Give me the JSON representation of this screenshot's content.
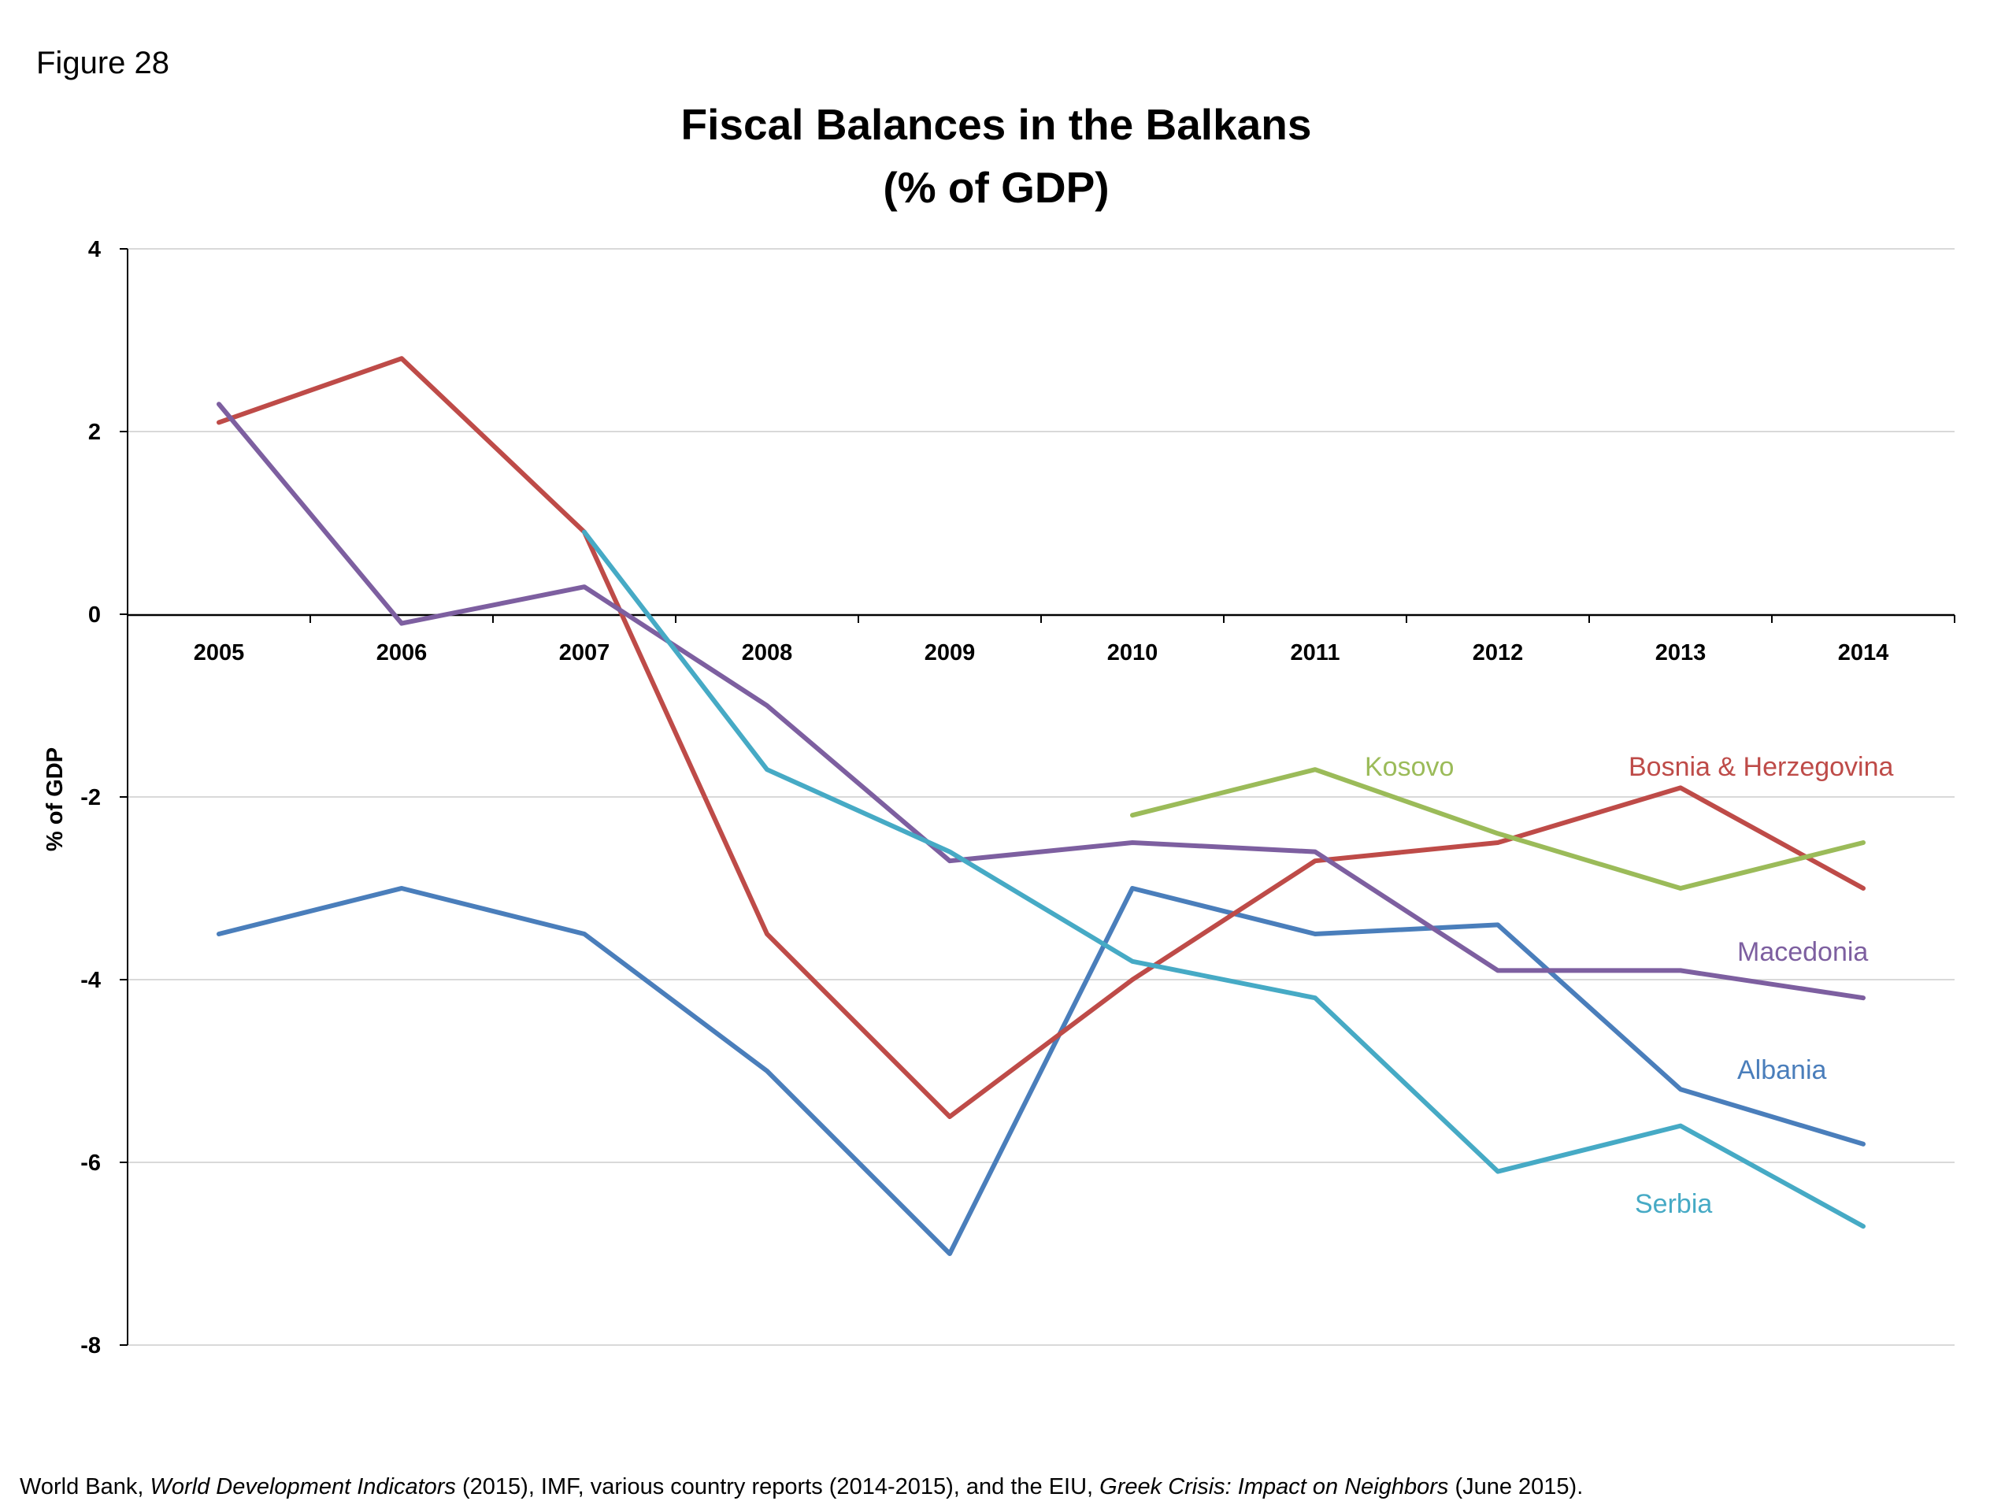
{
  "figure_label": "Figure 28",
  "title_line1": "Fiscal Balances in the Balkans",
  "title_line2": "(% of GDP)",
  "source": {
    "p1": "World Bank, ",
    "i1": "World Development Indicators",
    "p2": " (2015), IMF, various country reports (2014-2015), and the EIU, ",
    "i2": "Greek Crisis: Impact on Neighbors",
    "p3": " (June 2015)."
  },
  "chart_data": {
    "type": "line",
    "title": "Fiscal Balances in the Balkans (% of GDP)",
    "xlabel": "",
    "ylabel": "% of GDP",
    "ylim": [
      -8,
      4
    ],
    "yticks": [
      4,
      2,
      0,
      -2,
      -4,
      -6,
      -8
    ],
    "grid": true,
    "legend": "inline labels at line ends",
    "categories": [
      "2005",
      "2006",
      "2007",
      "2008",
      "2009",
      "2010",
      "2011",
      "2012",
      "2013",
      "2014"
    ],
    "series": [
      {
        "name": "Albania",
        "color": "#4a7ebb",
        "values": [
          -3.5,
          -3.0,
          -3.5,
          -5.0,
          -7.0,
          -3.0,
          -3.5,
          -3.4,
          -5.2,
          -5.8
        ]
      },
      {
        "name": "Bosnia & Herzegovina",
        "color": "#be4b48",
        "values": [
          2.1,
          2.8,
          0.9,
          -3.5,
          -5.5,
          -4.0,
          -2.7,
          -2.5,
          -1.9,
          -3.0
        ]
      },
      {
        "name": "Macedonia",
        "color": "#7d5fa0",
        "values": [
          2.3,
          -0.1,
          0.3,
          -1.0,
          -2.7,
          -2.5,
          -2.6,
          -3.9,
          -3.9,
          -4.2
        ]
      },
      {
        "name": "Serbia",
        "color": "#46aac5",
        "values": [
          null,
          null,
          0.9,
          -1.7,
          -2.6,
          -3.8,
          -4.2,
          -6.1,
          -5.6,
          -6.7
        ]
      },
      {
        "name": "Kosovo",
        "color": "#9bbb59",
        "values": [
          null,
          null,
          null,
          null,
          null,
          -2.2,
          -1.7,
          -2.4,
          -3.0,
          -2.5
        ]
      }
    ],
    "labels": {
      "kosovo": "Kosovo",
      "bosnia": "Bosnia & Herzegovina",
      "macedonia": "Macedonia",
      "albania": "Albania",
      "serbia": "Serbia"
    }
  }
}
